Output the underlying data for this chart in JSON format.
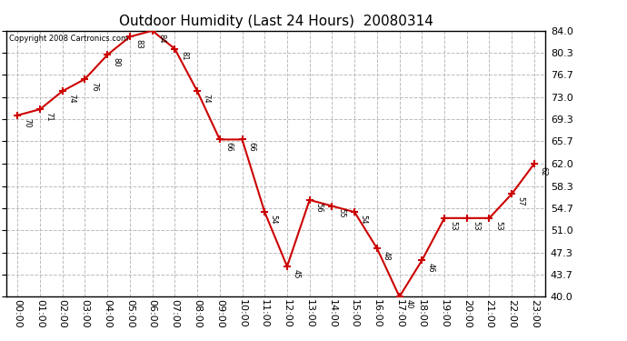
{
  "title": "Outdoor Humidity (Last 24 Hours)  20080314",
  "copyright_text": "Copyright 2008 Cartronics.com",
  "hours": [
    "00:00",
    "01:00",
    "02:00",
    "03:00",
    "04:00",
    "05:00",
    "06:00",
    "07:00",
    "08:00",
    "09:00",
    "10:00",
    "11:00",
    "12:00",
    "13:00",
    "14:00",
    "15:00",
    "16:00",
    "17:00",
    "18:00",
    "19:00",
    "20:00",
    "21:00",
    "22:00",
    "23:00"
  ],
  "values": [
    70,
    71,
    74,
    76,
    80,
    83,
    84,
    81,
    74,
    66,
    66,
    54,
    45,
    56,
    55,
    54,
    48,
    40,
    46,
    53,
    53,
    53,
    57,
    62
  ],
  "ylim": [
    40.0,
    84.0
  ],
  "yticks": [
    40.0,
    43.7,
    47.3,
    51.0,
    54.7,
    58.3,
    62.0,
    65.7,
    69.3,
    73.0,
    76.7,
    80.3,
    84.0
  ],
  "ytick_labels": [
    "40.0",
    "43.7",
    "47.3",
    "51.0",
    "54.7",
    "58.3",
    "62.0",
    "65.7",
    "69.3",
    "73.0",
    "76.7",
    "80.3",
    "84.0"
  ],
  "line_color": "#cc0000",
  "marker": "+",
  "marker_size": 6,
  "marker_linewidth": 1.5,
  "linewidth": 1.5,
  "grid_color": "#bbbbbb",
  "background_color": "#ffffff",
  "tick_fontsize": 8,
  "title_fontsize": 11,
  "annotation_fontsize": 6,
  "copyright_fontsize": 6
}
